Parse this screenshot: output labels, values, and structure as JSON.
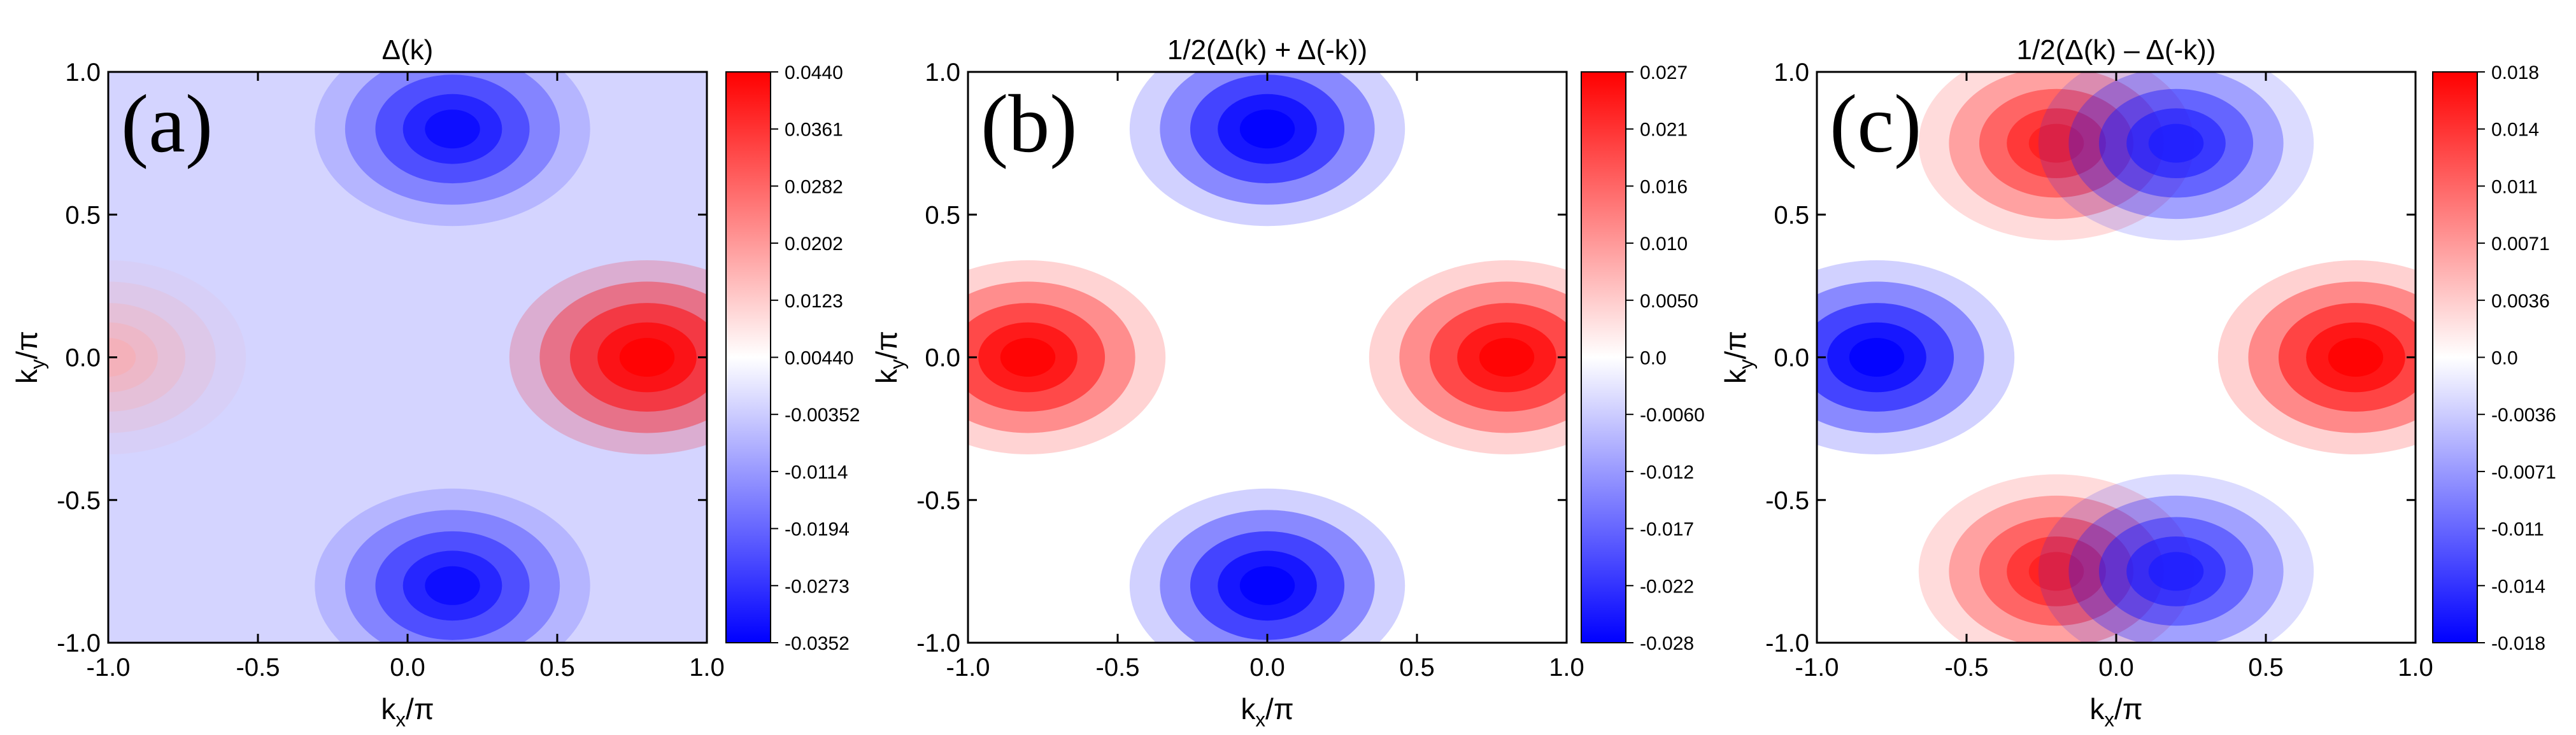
{
  "chart_data": [
    {
      "type": "heatmap",
      "panel_label": "(a)",
      "title": "Δ(k)",
      "xlabel": "k_x/π",
      "ylabel": "k_y/π",
      "xlim": [
        -1.0,
        1.0
      ],
      "ylim": [
        -1.0,
        1.0
      ],
      "xticks": [
        "-1.0",
        "-0.5",
        "0.0",
        "0.5",
        "1.0"
      ],
      "yticks": [
        "-1.0",
        "-0.5",
        "0.0",
        "0.5",
        "1.0"
      ],
      "colorbar": {
        "range": [
          -0.0352,
          0.044
        ],
        "ticks": [
          "0.0440",
          "0.0361",
          "0.0282",
          "0.0202",
          "0.0123",
          "0.00440",
          "-0.00352",
          "-0.0114",
          "-0.0194",
          "-0.0273",
          "-0.0352"
        ],
        "colormap": [
          "#0000ff",
          "#ffffff",
          "#ff0000"
        ]
      },
      "features": [
        {
          "kind": "max",
          "kx": 0.8,
          "ky": 0.0,
          "value": 0.044
        },
        {
          "kind": "min",
          "kx": 0.15,
          "ky": 0.8,
          "value": -0.035
        },
        {
          "kind": "min",
          "kx": 0.15,
          "ky": -0.8,
          "value": -0.035
        },
        {
          "kind": "local",
          "kx": -1.0,
          "ky": 0.0,
          "value": 0.015
        },
        {
          "kind": "background",
          "value": -0.006
        }
      ]
    },
    {
      "type": "heatmap",
      "panel_label": "(b)",
      "title": "1/2(Δ(k) + Δ(-k))",
      "xlabel": "k_x/π",
      "ylabel": "k_y/π",
      "xlim": [
        -1.0,
        1.0
      ],
      "ylim": [
        -1.0,
        1.0
      ],
      "xticks": [
        "-1.0",
        "-0.5",
        "0.0",
        "0.5",
        "1.0"
      ],
      "yticks": [
        "-1.0",
        "-0.5",
        "0.0",
        "0.5",
        "1.0"
      ],
      "colorbar": {
        "range": [
          -0.028,
          0.027
        ],
        "ticks": [
          "0.027",
          "0.021",
          "0.016",
          "0.010",
          "0.0050",
          "0.0",
          "-0.0060",
          "-0.012",
          "-0.017",
          "-0.022",
          "-0.028"
        ],
        "colormap": [
          "#0000ff",
          "#ffffff",
          "#ff0000"
        ]
      },
      "features": [
        {
          "kind": "max",
          "kx": 0.8,
          "ky": 0.0,
          "value": 0.027
        },
        {
          "kind": "max",
          "kx": -0.8,
          "ky": 0.0,
          "value": 0.027
        },
        {
          "kind": "min",
          "kx": 0.0,
          "ky": 0.8,
          "value": -0.028
        },
        {
          "kind": "min",
          "kx": 0.0,
          "ky": -0.8,
          "value": -0.028
        }
      ]
    },
    {
      "type": "heatmap",
      "panel_label": "(c)",
      "title": "1/2(Δ(k) – Δ(-k))",
      "xlabel": "k_x/π",
      "ylabel": "k_y/π",
      "xlim": [
        -1.0,
        1.0
      ],
      "ylim": [
        -1.0,
        1.0
      ],
      "xticks": [
        "-1.0",
        "-0.5",
        "0.0",
        "0.5",
        "1.0"
      ],
      "yticks": [
        "-1.0",
        "-0.5",
        "0.0",
        "0.5",
        "1.0"
      ],
      "colorbar": {
        "range": [
          -0.018,
          0.018
        ],
        "ticks": [
          "0.018",
          "0.014",
          "0.011",
          "0.0071",
          "0.0036",
          "0.0",
          "-0.0036",
          "-0.0071",
          "-0.011",
          "-0.014",
          "-0.018"
        ],
        "colormap": [
          "#0000ff",
          "#ffffff",
          "#ff0000"
        ]
      },
      "features": [
        {
          "kind": "max",
          "kx": 0.8,
          "ky": 0.0,
          "value": 0.018
        },
        {
          "kind": "min",
          "kx": -0.8,
          "ky": 0.0,
          "value": -0.018
        },
        {
          "kind": "max",
          "kx": -0.2,
          "ky": 0.75,
          "value": 0.016
        },
        {
          "kind": "min",
          "kx": 0.2,
          "ky": 0.75,
          "value": -0.016
        },
        {
          "kind": "max",
          "kx": -0.2,
          "ky": -0.75,
          "value": 0.016
        },
        {
          "kind": "min",
          "kx": 0.2,
          "ky": -0.75,
          "value": -0.016
        }
      ]
    }
  ]
}
